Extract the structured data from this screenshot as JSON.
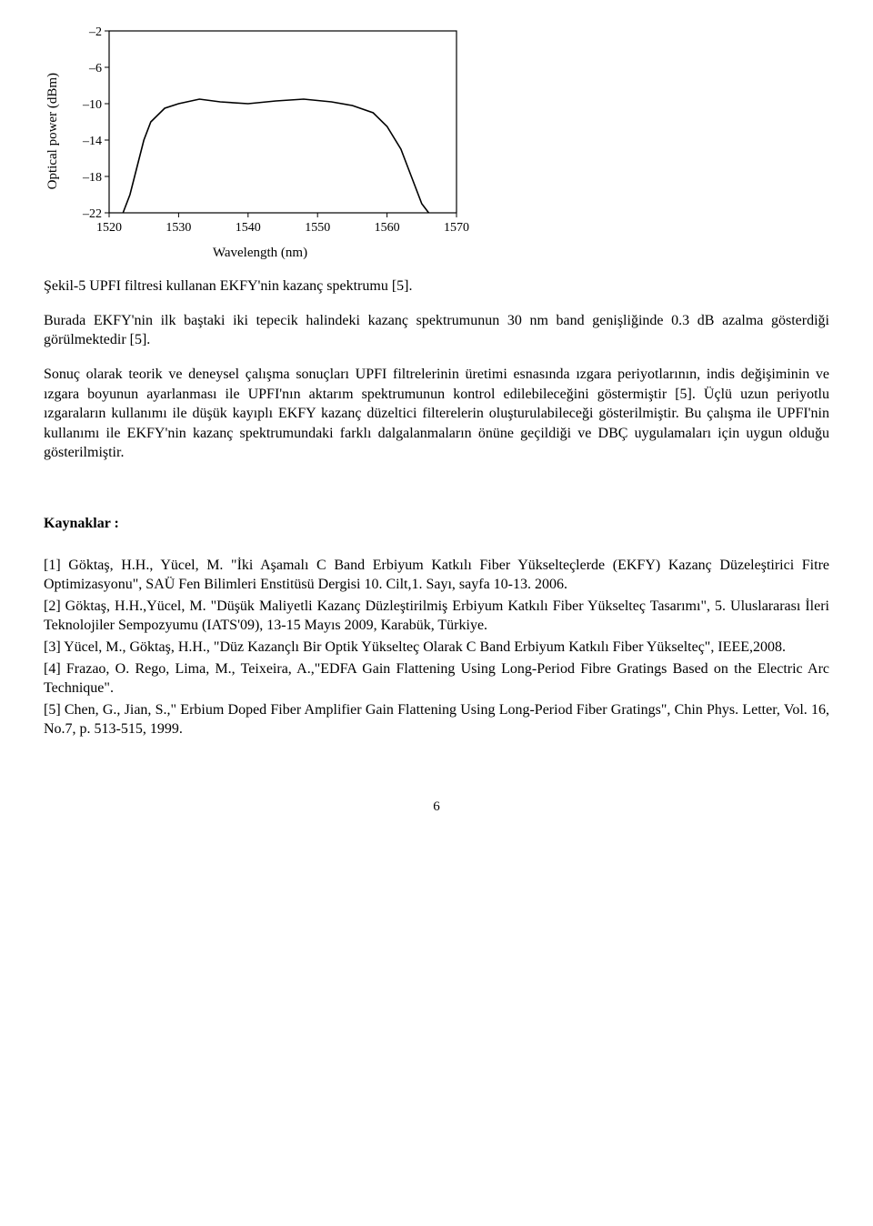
{
  "chart": {
    "type": "line",
    "ylabel": "Optical power (dBm)",
    "xlabel": "Wavelength (nm)",
    "xlim": [
      1520,
      1570
    ],
    "ylim": [
      -22,
      -2
    ],
    "xticks": [
      1520,
      1530,
      1540,
      1550,
      1560,
      1570
    ],
    "yticks": [
      -22,
      -18,
      -14,
      -10,
      -6,
      -2
    ],
    "line_color": "#000000",
    "line_width": 1.6,
    "axis_color": "#000000",
    "background_color": "#ffffff",
    "tick_fontsize": 14,
    "label_fontsize": 15,
    "x": [
      1522,
      1523,
      1524,
      1525,
      1526,
      1528,
      1530,
      1533,
      1536,
      1540,
      1544,
      1548,
      1552,
      1555,
      1558,
      1560,
      1562,
      1563,
      1564,
      1565,
      1566
    ],
    "y": [
      -22,
      -20,
      -17,
      -14,
      -12,
      -10.5,
      -10,
      -9.5,
      -9.8,
      -10,
      -9.7,
      -9.5,
      -9.8,
      -10.2,
      -11,
      -12.5,
      -15,
      -17,
      -19,
      -21,
      -22
    ]
  },
  "caption": "Şekil-5 UPFI filtresi kullanan EKFY'nin kazanç spektrumu [5].",
  "para1": "Burada EKFY'nin ilk baştaki iki tepecik halindeki kazanç spektrumunun 30 nm band genişliğinde   0.3 dB azalma gösterdiği görülmektedir [5].",
  "para2": "Sonuç olarak teorik ve deneysel çalışma sonuçları UPFI filtrelerinin üretimi esnasında ızgara periyotlarının, indis değişiminin ve ızgara boyunun ayarlanması ile UPFI'nın aktarım spektrumunun kontrol edilebileceğini göstermiştir [5]. Üçlü uzun periyotlu ızgaraların kullanımı ile düşük kayıplı EKFY kazanç düzeltici filterelerin oluşturulabileceği gösterilmiştir. Bu çalışma ile UPFI'nin kullanımı ile EKFY'nin kazanç spektrumundaki farklı dalgalanmaların önüne geçildiği ve DBÇ uygulamaları için uygun olduğu gösterilmiştir.",
  "refs_heading": "Kaynaklar :",
  "refs": [
    "[1] Göktaş, H.H., Yücel, M. \"İki Aşamalı C Band Erbiyum Katkılı Fiber Yükselteçlerde (EKFY) Kazanç Düzeleştirici Fitre Optimizasyonu\", SAÜ Fen Bilimleri Enstitüsü Dergisi 10. Cilt,1. Sayı, sayfa 10-13. 2006.",
    "[2] Göktaş, H.H.,Yücel, M. \"Düşük Maliyetli Kazanç Düzleştirilmiş Erbiyum Katkılı Fiber Yükselteç Tasarımı\", 5. Uluslararası İleri Teknolojiler Sempozyumu (IATS'09), 13-15 Mayıs 2009, Karabük, Türkiye.",
    "[3] Yücel, M., Göktaş, H.H., \"Düz Kazançlı Bir Optik Yükselteç Olarak C Band Erbiyum Katkılı Fiber Yükselteç\", IEEE,2008.",
    "[4] Frazao, O. Rego, Lima, M., Teixeira, A.,\"EDFA Gain Flattening Using Long-Period Fibre Gratings Based on the Electric Arc Technique\".",
    "[5] Chen, G., Jian, S.,\" Erbium Doped Fiber Amplifier Gain Flattening Using Long-Period Fiber Gratings\", Chin Phys. Letter, Vol. 16, No.7, p. 513-515, 1999."
  ],
  "pagenum": "6"
}
